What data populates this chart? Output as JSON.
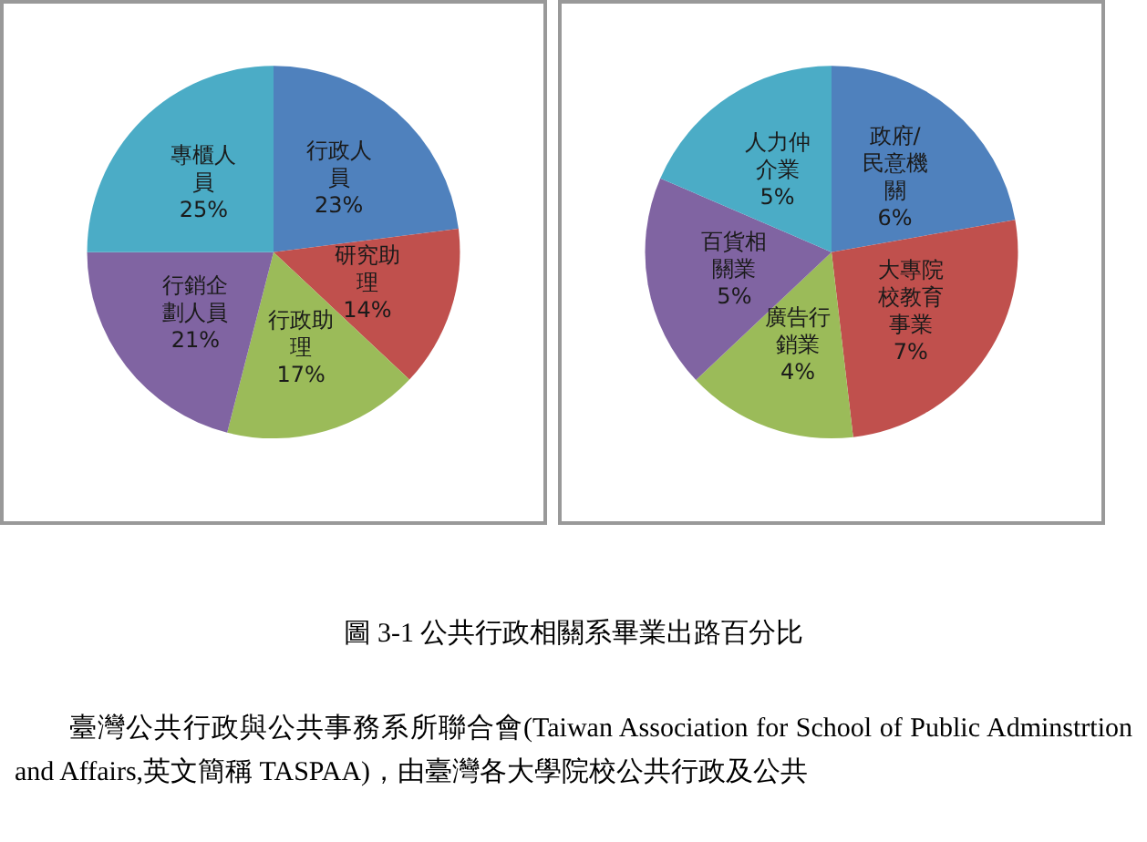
{
  "chart_data": [
    {
      "type": "pie",
      "categories": [
        "行政人員",
        "研究助理",
        "行政助理",
        "行銷企劃人員",
        "專櫃人員"
      ],
      "values": [
        23,
        14,
        17,
        21,
        25
      ],
      "colors": [
        "#4f81bd",
        "#c0504d",
        "#9bbb59",
        "#8064a2",
        "#4bacc6"
      ],
      "value_labels": [
        "23%",
        "14%",
        "17%",
        "21%",
        "25%"
      ],
      "legend": false,
      "annotations": [
        "圖 3-1  公共行政相關系畢業出路百分比",
        "臺灣公共行政與公共事務系所聯合會(Taiwan Association for School of Public Adminstrtion and Affairs,英文簡稱 TASPAA)，由臺灣各大學院校公共行政及公共"
      ]
    },
    {
      "type": "pie",
      "categories": [
        "政府/民意機關",
        "大專院校教育事業",
        "廣告行銷業",
        "百貨相關業",
        "人力仲介業"
      ],
      "values": [
        6,
        7,
        4,
        5,
        5
      ],
      "colors": [
        "#4f81bd",
        "#c0504d",
        "#9bbb59",
        "#8064a2",
        "#4bacc6"
      ],
      "value_labels": [
        "6%",
        "7%",
        "4%",
        "5%",
        "5%"
      ],
      "legend": false
    }
  ]
}
